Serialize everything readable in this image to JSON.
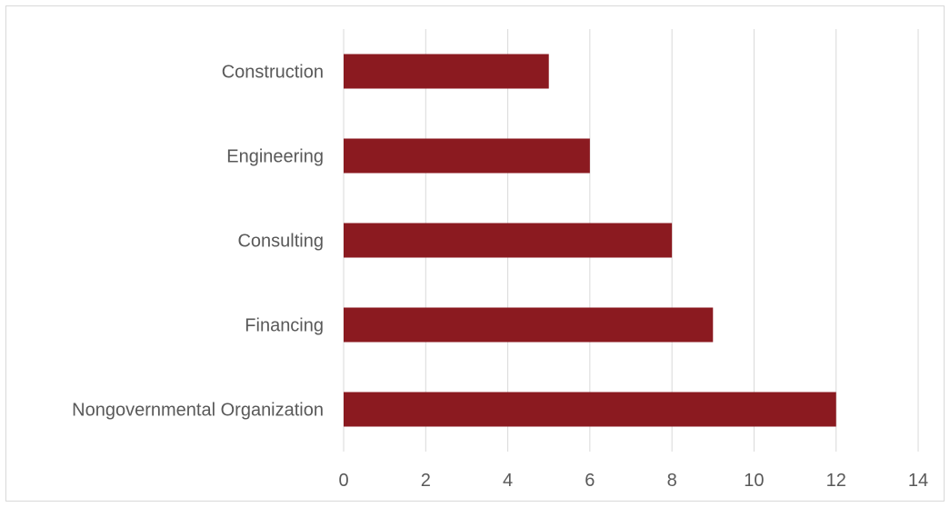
{
  "chart_data": {
    "type": "bar",
    "orientation": "horizontal",
    "categories": [
      "Construction",
      "Engineering",
      "Consulting",
      "Financing",
      "Nongovernmental Organization"
    ],
    "values": [
      5,
      6,
      8,
      9,
      12
    ],
    "title": "",
    "xlabel": "",
    "ylabel": "",
    "xlim": [
      0,
      14
    ],
    "x_ticks": [
      0,
      2,
      4,
      6,
      8,
      10,
      12,
      14
    ],
    "grid": "vertical",
    "legend": "none",
    "bar_color": "#8b1a20",
    "grid_color": "#d9d9d9",
    "text_color": "#595959"
  }
}
